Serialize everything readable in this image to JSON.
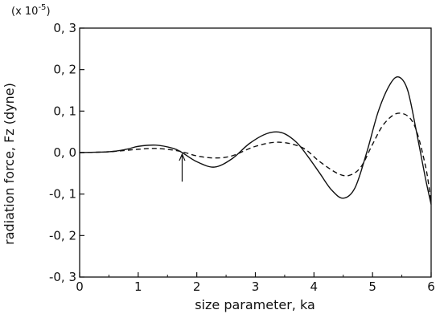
{
  "chart_data": {
    "type": "line",
    "title": "",
    "xlabel": "size parameter, ka",
    "ylabel": "radiation force, Fz (dyne)",
    "y_multiplier_label": "(x 10",
    "y_multiplier_exponent": "-5",
    "y_multiplier_close": ")",
    "xlim": [
      0,
      6
    ],
    "ylim": [
      -0.3,
      0.3
    ],
    "x_ticks": [
      0,
      1,
      2,
      3,
      4,
      5,
      6
    ],
    "x_tick_labels": [
      "0",
      "1",
      "2",
      "3",
      "4",
      "5",
      "6"
    ],
    "y_ticks": [
      0.3,
      0.2,
      0.1,
      0.0,
      -0.1,
      -0.2,
      -0.3
    ],
    "y_tick_labels": [
      "0, 3",
      "0, 2",
      "0, 1",
      "0, 0",
      "-0, 1",
      "-0, 2",
      "-0, 3"
    ],
    "grid": false,
    "legend": "none",
    "annotation_arrow": {
      "x": 1.75,
      "y_tip": 0.0,
      "y_tail": -0.07
    },
    "series": [
      {
        "style": "solid",
        "color": "#111111",
        "x": [
          0.0,
          0.5,
          0.8,
          1.0,
          1.3,
          1.6,
          1.75,
          2.0,
          2.3,
          2.6,
          2.9,
          3.2,
          3.45,
          3.7,
          3.9,
          4.1,
          4.3,
          4.5,
          4.7,
          4.9,
          5.1,
          5.3,
          5.45,
          5.6,
          5.75,
          5.9,
          6.0
        ],
        "y": [
          0.0,
          0.002,
          0.008,
          0.015,
          0.018,
          0.01,
          0.0,
          -0.022,
          -0.035,
          -0.015,
          0.022,
          0.046,
          0.048,
          0.025,
          -0.01,
          -0.05,
          -0.09,
          -0.11,
          -0.085,
          0.0,
          0.1,
          0.165,
          0.182,
          0.15,
          0.05,
          -0.06,
          -0.125
        ]
      },
      {
        "style": "dashed",
        "color": "#111111",
        "x": [
          0.0,
          0.5,
          1.0,
          1.3,
          1.6,
          1.8,
          2.0,
          2.3,
          2.6,
          3.0,
          3.4,
          3.8,
          4.1,
          4.4,
          4.6,
          4.8,
          5.0,
          5.2,
          5.45,
          5.7,
          5.9,
          6.0
        ],
        "y": [
          0.0,
          0.002,
          0.008,
          0.01,
          0.006,
          0.0,
          -0.008,
          -0.013,
          -0.008,
          0.015,
          0.025,
          0.012,
          -0.022,
          -0.05,
          -0.055,
          -0.035,
          0.02,
          0.07,
          0.095,
          0.07,
          -0.03,
          -0.12
        ]
      }
    ]
  }
}
